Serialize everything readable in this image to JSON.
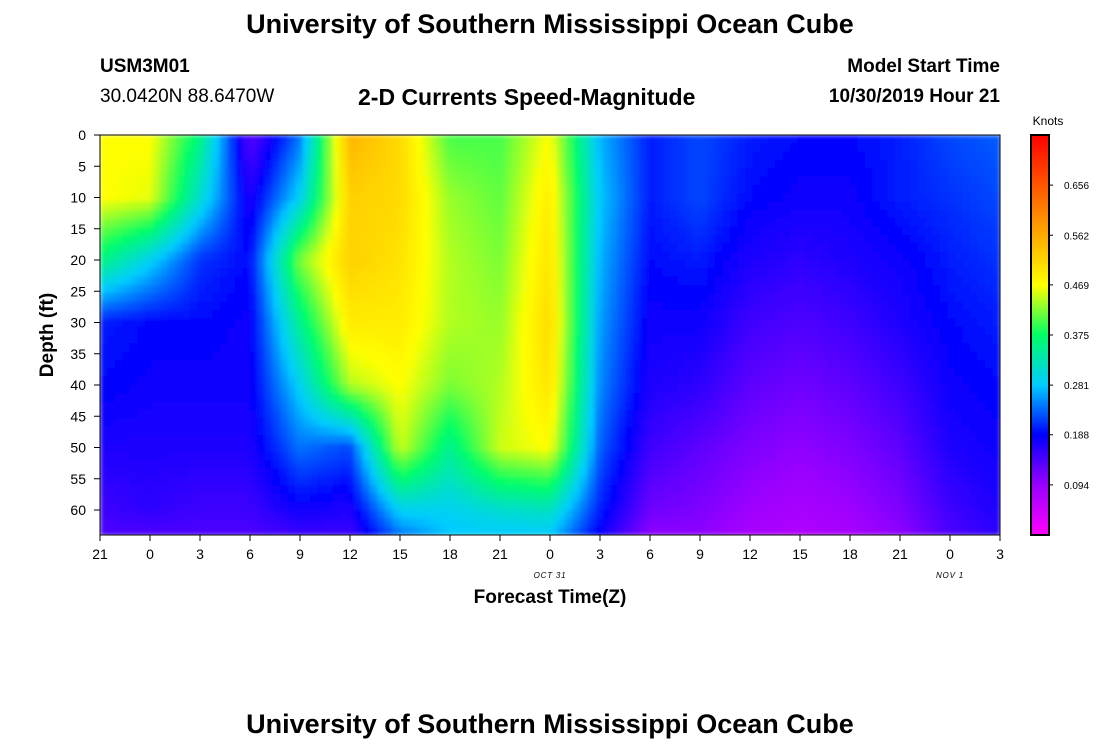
{
  "page": {
    "title_top": "University of Southern Mississippi Ocean Cube",
    "title_bottom": "University of Southern Mississippi Ocean Cube",
    "station_id": "USM3M01",
    "station_coords": "30.0420N 88.6470W",
    "product_title": "2-D Currents Speed-Magnitude",
    "model_start_label": "Model Start Time",
    "model_start_value": "10/30/2019 Hour 21"
  },
  "colors": {
    "background": "#ffffff",
    "text": "#000000",
    "colormap": [
      "#ff00ff",
      "#9900ff",
      "#0000ff",
      "#00ccff",
      "#00ff66",
      "#ffff00",
      "#ffaa00",
      "#ff5500",
      "#ff0000"
    ]
  },
  "chart_data": {
    "type": "heatmap",
    "xlabel": "Forecast Time(Z)",
    "ylabel": "Depth (ft)",
    "x_tick_labels": [
      "21",
      "0",
      "3",
      "6",
      "9",
      "12",
      "15",
      "18",
      "21",
      "0",
      "3",
      "6",
      "9",
      "12",
      "15",
      "18",
      "21",
      "0",
      "3"
    ],
    "x_date_labels": [
      {
        "label": "OCT 31",
        "hour_index": 9
      },
      {
        "label": "NOV 1",
        "hour_index": 17
      }
    ],
    "y_ticks": [
      0,
      5,
      10,
      15,
      20,
      25,
      30,
      35,
      40,
      45,
      50,
      55,
      60
    ],
    "ylim": [
      0,
      64
    ],
    "colorbar": {
      "unit": "Knots",
      "ticks": [
        "0.656",
        "0.562",
        "0.469",
        "0.375",
        "0.281",
        "0.188",
        "0.094"
      ],
      "range": [
        0,
        0.75
      ]
    },
    "time_hours": [
      0,
      3,
      6,
      9,
      12,
      15,
      18,
      21,
      24,
      27,
      30,
      33,
      36,
      39,
      42,
      45,
      48,
      51,
      54
    ],
    "depth_samples_ft": [
      0,
      10,
      20,
      30,
      40,
      50,
      60,
      64
    ],
    "speed_knots": [
      [
        0.47,
        0.47,
        0.36,
        0.2,
        0.19,
        0.17,
        0.15,
        0.14
      ],
      [
        0.47,
        0.46,
        0.29,
        0.19,
        0.18,
        0.17,
        0.16,
        0.14
      ],
      [
        0.36,
        0.31,
        0.21,
        0.19,
        0.18,
        0.17,
        0.15,
        0.14
      ],
      [
        0.13,
        0.17,
        0.19,
        0.18,
        0.18,
        0.17,
        0.15,
        0.14
      ],
      [
        0.24,
        0.29,
        0.42,
        0.35,
        0.29,
        0.24,
        0.18,
        0.15
      ],
      [
        0.55,
        0.52,
        0.52,
        0.49,
        0.44,
        0.22,
        0.17,
        0.15
      ],
      [
        0.51,
        0.51,
        0.5,
        0.49,
        0.47,
        0.45,
        0.29,
        0.24
      ],
      [
        0.4,
        0.43,
        0.44,
        0.44,
        0.42,
        0.35,
        0.29,
        0.28
      ],
      [
        0.4,
        0.41,
        0.42,
        0.43,
        0.44,
        0.45,
        0.31,
        0.28
      ],
      [
        0.47,
        0.49,
        0.5,
        0.51,
        0.5,
        0.47,
        0.32,
        0.28
      ],
      [
        0.27,
        0.28,
        0.27,
        0.26,
        0.25,
        0.23,
        0.2,
        0.18
      ],
      [
        0.2,
        0.2,
        0.19,
        0.18,
        0.17,
        0.15,
        0.12,
        0.1
      ],
      [
        0.22,
        0.22,
        0.2,
        0.18,
        0.16,
        0.13,
        0.11,
        0.1
      ],
      [
        0.2,
        0.19,
        0.17,
        0.15,
        0.13,
        0.11,
        0.09,
        0.08
      ],
      [
        0.19,
        0.18,
        0.16,
        0.14,
        0.12,
        0.1,
        0.08,
        0.07
      ],
      [
        0.19,
        0.18,
        0.17,
        0.15,
        0.13,
        0.11,
        0.09,
        0.08
      ],
      [
        0.2,
        0.2,
        0.18,
        0.17,
        0.15,
        0.13,
        0.11,
        0.1
      ],
      [
        0.22,
        0.21,
        0.2,
        0.19,
        0.18,
        0.17,
        0.15,
        0.14
      ],
      [
        0.23,
        0.22,
        0.21,
        0.2,
        0.19,
        0.18,
        0.17,
        0.16
      ]
    ]
  }
}
